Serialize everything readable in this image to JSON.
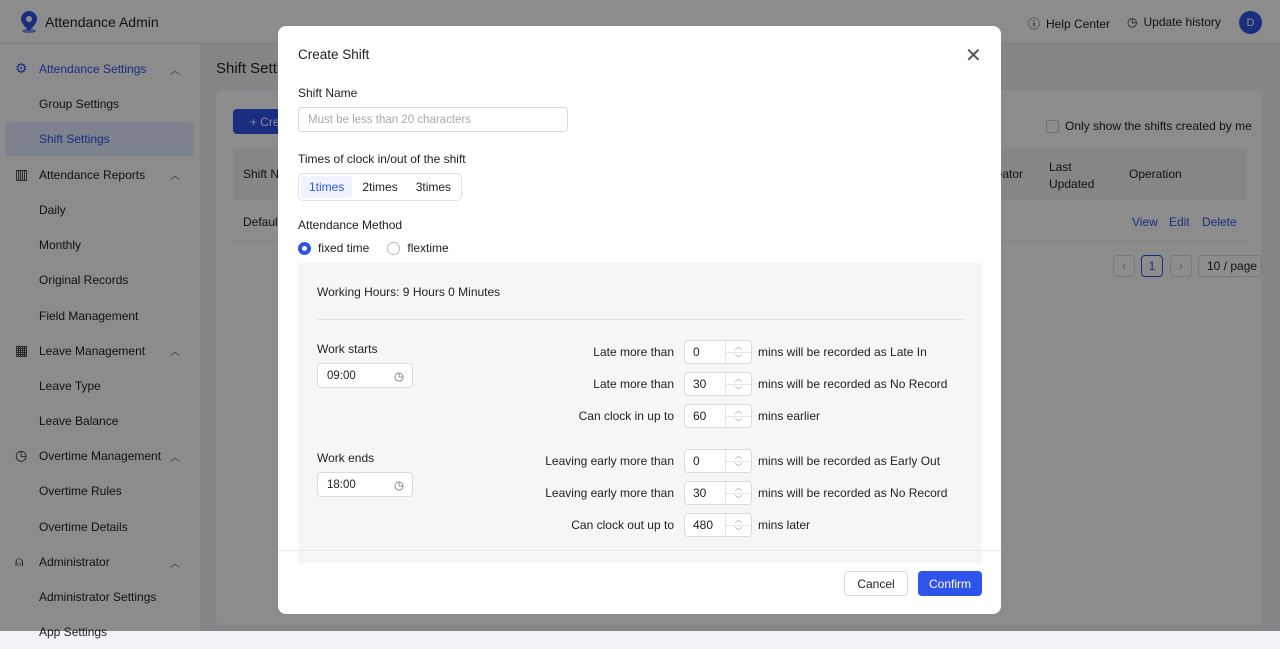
{
  "header": {
    "app_title": "Attendance Admin",
    "help": "Help Center",
    "update": "Update history",
    "avatar": "D"
  },
  "sidebar": {
    "groups": [
      {
        "label": "Attendance Settings",
        "icon": "gear-icon",
        "items": [
          "Group Settings",
          "Shift Settings"
        ],
        "active": "Shift Settings"
      },
      {
        "label": "Attendance Reports",
        "icon": "bar-chart-icon",
        "items": [
          "Daily",
          "Monthly",
          "Original Records",
          "Field Management"
        ]
      },
      {
        "label": "Leave Management",
        "icon": "calendar-icon",
        "items": [
          "Leave Type",
          "Leave Balance"
        ]
      },
      {
        "label": "Overtime Management",
        "icon": "clock-icon",
        "items": [
          "Overtime Rules",
          "Overtime Details"
        ]
      },
      {
        "label": "Administrator",
        "icon": "user-icon",
        "items": [
          "Administrator Settings",
          "App Settings"
        ]
      }
    ]
  },
  "page": {
    "title": "Shift Settings",
    "create_label": "+ Create",
    "only_mine": "Only show the shifts created by me",
    "columns": [
      "Shift Name",
      "Creator",
      "Last Updated",
      "Operation"
    ],
    "rows": [
      {
        "name": "Default",
        "actions": [
          "View",
          "Edit",
          "Delete"
        ]
      }
    ],
    "pagination": {
      "current": "1",
      "page_size": "10 / page"
    }
  },
  "modal": {
    "title": "Create Shift",
    "shift_name_label": "Shift Name",
    "shift_name_placeholder": "Must be less than 20 characters",
    "times_label": "Times of clock in/out of the shift",
    "times_options": [
      "1times",
      "2times",
      "3times"
    ],
    "times_selected": "1times",
    "method_label": "Attendance Method",
    "methods": [
      "fixed time",
      "flextime"
    ],
    "method_selected": "fixed time",
    "working_hours": "Working Hours: 9 Hours 0 Minutes",
    "work_starts": {
      "label": "Work starts",
      "time": "09:00",
      "rules": [
        {
          "prefix": "Late more than",
          "value": "0",
          "suffix": "mins will be recorded as Late In"
        },
        {
          "prefix": "Late more than",
          "value": "30",
          "suffix": "mins will be recorded as No Record"
        },
        {
          "prefix": "Can clock in up to",
          "value": "60",
          "suffix": "mins earlier"
        }
      ]
    },
    "work_ends": {
      "label": "Work ends",
      "time": "18:00",
      "rules": [
        {
          "prefix": "Leaving early more than",
          "value": "0",
          "suffix": "mins will be recorded as Early Out"
        },
        {
          "prefix": "Leaving early more than",
          "value": "30",
          "suffix": "mins will be recorded as No Record"
        },
        {
          "prefix": "Can clock out up to",
          "value": "480",
          "suffix": "mins later"
        }
      ]
    },
    "cancel": "Cancel",
    "confirm": "Confirm"
  },
  "colors": {
    "accent": "#2f54eb"
  }
}
